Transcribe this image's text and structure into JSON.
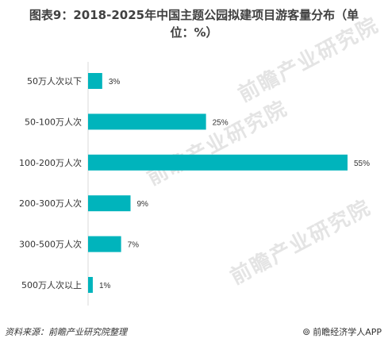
{
  "title_line1": "图表9：2018-2025年中国主题公园拟建项目游客量分布（单",
  "title_line2": "位：%）",
  "watermark": "前瞻产业研究院",
  "footer": {
    "source": "资料来源：前瞻产业研究院整理",
    "brand": "前瞻经济学人APP"
  },
  "colors": {
    "bar": "#00b4bc",
    "watermark": "#e4e4e4"
  },
  "chart_data": {
    "type": "bar",
    "orientation": "horizontal",
    "categories": [
      "50万人次以下",
      "50-100万人次",
      "100-200万人次",
      "200-300万人次",
      "300-500万人次",
      "500万人次以上"
    ],
    "values": [
      3,
      25,
      55,
      9,
      7,
      1
    ],
    "value_labels": [
      "3%",
      "25%",
      "55%",
      "9%",
      "7%",
      "1%"
    ],
    "xlim": [
      0,
      55
    ]
  }
}
